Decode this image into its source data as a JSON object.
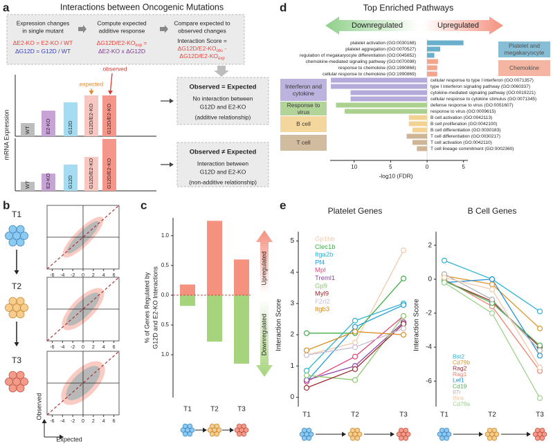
{
  "panel_labels": [
    "a",
    "b",
    "c",
    "d",
    "e"
  ],
  "panel_a": {
    "title": "Interactions between Oncogenic Mutations",
    "steps": [
      {
        "heading": [
          "Expression changes",
          "in single mutant"
        ],
        "lines": [
          [
            "ΔE2-KO = E2-KO / WT"
          ],
          [
            "ΔG12D = G12D / WT"
          ]
        ]
      },
      {
        "heading": [
          "Compute expected",
          "additive response"
        ],
        "lines": [
          [
            "ΔG12D/E2-KO",
            {
              "sub": "exp"
            },
            " ="
          ],
          [
            "ΔE2-KO x ΔG12D"
          ]
        ]
      },
      {
        "heading": [
          "Compare expected to",
          "observed changes"
        ],
        "lines": [
          [
            "Interaction Score ="
          ],
          [
            "ΔG12D/E2-KO",
            {
              "sub": "obs"
            },
            " -"
          ],
          [
            "ΔG12D/E2-KO",
            {
              "sub": "exp"
            }
          ]
        ]
      }
    ],
    "y_label": "mRNA Expression",
    "schematics": [
      {
        "bars": [
          "WT",
          "E2-KO",
          "G12D",
          "G12D/E2-KO",
          "G12D/E2-KO"
        ],
        "markers": [
          "expected",
          "observed"
        ],
        "box": {
          "title": "Observed = Expected",
          "lines": [
            "No interaction between",
            "G12D and E2-KO",
            "(additive relationship)"
          ]
        }
      },
      {
        "bars": [
          "WT",
          "E2-KO",
          "G12D",
          "G12D/E2-KO",
          "G12D/E2-KO"
        ],
        "box": {
          "title": "Observed ≠ Expected",
          "lines": [
            "Interaction between",
            "G12D and E2-KO",
            "(non-additive relationship)"
          ]
        }
      }
    ]
  },
  "chart_data": [
    {
      "type": "scatter",
      "panels": [
        "T1",
        "T2",
        "T3"
      ],
      "x_label": "Expected",
      "y_label": "Observed",
      "xlim": [
        -7,
        7
      ],
      "ylim": [
        -7,
        7
      ],
      "xticks": [
        -6,
        -4,
        -2,
        0,
        2,
        4,
        6
      ]
    },
    {
      "type": "bar",
      "y_label": [
        "% of Genes Regulated by",
        "G12D and E2-KO Interactions"
      ],
      "categories": [
        "T1",
        "T2",
        "T3"
      ],
      "ylim": [
        -1.72,
        1.3
      ],
      "yticks": [
        {
          "value": 1,
          "label": "1.0"
        },
        0.5,
        {
          "value": 0,
          "label": "0.0"
        },
        {
          "value": -0.5,
          "label": "0.5"
        },
        {
          "value": -1,
          "label": "1.0"
        }
      ],
      "series": [
        {
          "name": "Upregulated",
          "color": "#f4917f",
          "values": [
            0.18,
            1.25,
            0.6
          ]
        },
        {
          "name": "Downregulated",
          "color": "#a6d47c",
          "values": [
            -0.18,
            -0.78,
            -1.15
          ]
        }
      ]
    },
    {
      "type": "barh",
      "title": "Top Enriched Pathways",
      "direction_labels": [
        "Downregulated",
        "Upregulated"
      ],
      "x_label": "-log10 (FDR)",
      "xlim": [
        -13.3,
        5.6
      ],
      "xticks": [
        {
          "value": -10,
          "label": "10"
        },
        {
          "value": -5,
          "label": "5"
        },
        0,
        5
      ],
      "series": [
        {
          "name": "Platelet and megakaryocyte",
          "color": "#6aafcc",
          "categories": [
            "platelet activation (GO:0030168)",
            "platelet aggregation (GO:0070527)",
            "regulation of megakaryocyte differentiation (GO:0045652)"
          ],
          "values": [
            5.0,
            1.8,
            1.0
          ]
        },
        {
          "name": "Chemokine",
          "color": "#f2a58c",
          "categories": [
            "chemokine-mediated signaling pathway (GO:0070098)",
            "response to chemokine (GO:1990868)",
            "cellular response to chemokine (GO:1990869)"
          ],
          "values": [
            1.5,
            1.4,
            1.4
          ]
        },
        {
          "name": "Interferon and cytokine",
          "color": "#b5abdb",
          "categories": [
            "cellular response to type I interferon (GO:0071357)",
            "type I interferon signaling pathway (GO:0060337)",
            "cytokine-mediated signaling pathway (GO:0019221)",
            "cellular response to cytokine stimulus (GO:0071345)"
          ],
          "values": [
            -13.2,
            -13.2,
            -10.5,
            -10.5
          ]
        },
        {
          "name": "Response to virus",
          "color": "#abd08f",
          "categories": [
            "defense response to virus (GO:0051607)",
            "response to virus (GO:0009615)"
          ],
          "values": [
            -12.5,
            -11.3
          ]
        },
        {
          "name": "B cell",
          "color": "#f3d393",
          "categories": [
            "B cell activation (GO:0042113)",
            "B cell proliferation (GO:0042100)",
            "B cell differentiation (GO:0030183)"
          ],
          "values": [
            -2.5,
            -2.5,
            -2.0
          ]
        },
        {
          "name": "T cell",
          "color": "#cdb596",
          "categories": [
            "T cell differentiation (GO:0030217)",
            "T cell activation (GO:0042110)",
            "T cell lineage commitment (GO:0002360)"
          ],
          "values": [
            -2.8,
            -2.0,
            -1.4
          ]
        }
      ]
    },
    {
      "type": "line",
      "title": "Platelet Genes",
      "y_label": "Interaction Score",
      "categories": [
        "T1",
        "T2",
        "T3"
      ],
      "ylim": [
        -0.3,
        5.3
      ],
      "yticks": [
        0,
        1,
        2,
        3,
        4,
        5
      ],
      "series": [
        {
          "name": "Gp1bb",
          "color": "#f3c9a8",
          "values": [
            1.35,
            1.75,
            4.7
          ]
        },
        {
          "name": "Clec1b",
          "color": "#3fae49",
          "values": [
            2.05,
            2.05,
            3.8
          ]
        },
        {
          "name": "Itga2b",
          "color": "#2cb3d3",
          "values": [
            0.85,
            2.45,
            3.0
          ]
        },
        {
          "name": "Pf4",
          "color": "#1f9bd7",
          "values": [
            0.5,
            2.25,
            2.95
          ]
        },
        {
          "name": "Mpl",
          "color": "#e5447a",
          "values": [
            0.5,
            1.3,
            2.6
          ]
        },
        {
          "name": "Treml1",
          "color": "#8e44ad",
          "values": [
            0.55,
            1.0,
            2.4
          ]
        },
        {
          "name": "Gp9",
          "color": "#8bc86f",
          "values": [
            0.7,
            0.55,
            2.6
          ]
        },
        {
          "name": "Myl9",
          "color": "#9c2a2f",
          "values": [
            0.3,
            0.9,
            2.35
          ]
        },
        {
          "name": "F2rl2",
          "color": "#c9bcd6",
          "values": [
            1.35,
            1.6,
            2.2
          ]
        },
        {
          "name": "Itgb3",
          "color": "#d98c1f",
          "values": [
            1.5,
            2.1,
            2.0
          ]
        }
      ]
    },
    {
      "type": "line",
      "title": "B Cell Genes",
      "y_label": "Interaction Score",
      "categories": [
        "T1",
        "T2",
        "T3"
      ],
      "ylim": [
        -7.5,
        2.8
      ],
      "yticks": [
        2,
        0,
        -2,
        -4,
        -6
      ],
      "series": [
        {
          "name": "Bst2",
          "color": "#2cb3d3",
          "values": [
            1.1,
            0.0,
            -1.9
          ]
        },
        {
          "name": "Cd79b",
          "color": "#e0952a",
          "values": [
            0.2,
            -0.3,
            -2.9
          ]
        },
        {
          "name": "Rag2",
          "color": "#9c2a2f",
          "values": [
            -0.1,
            -1.3,
            -4.0
          ]
        },
        {
          "name": "Rag1",
          "color": "#f0806c",
          "values": [
            0.0,
            -1.6,
            -5.4
          ]
        },
        {
          "name": "Lef1",
          "color": "#1f8fd7",
          "values": [
            -0.2,
            0.0,
            -4.5
          ]
        },
        {
          "name": "Cd19",
          "color": "#4caf50",
          "values": [
            -0.1,
            -1.4,
            -3.9
          ]
        },
        {
          "name": "Il7r",
          "color": "#b0b0b0",
          "values": [
            0.3,
            -1.2,
            -4.2
          ]
        },
        {
          "name": "Blnk",
          "color": "#f3c9a8",
          "values": [
            0.1,
            -0.6,
            -5.2
          ]
        },
        {
          "name": "Cd79a",
          "color": "#9bd38a",
          "values": [
            -0.2,
            -2.0,
            -7.0
          ]
        }
      ]
    }
  ]
}
